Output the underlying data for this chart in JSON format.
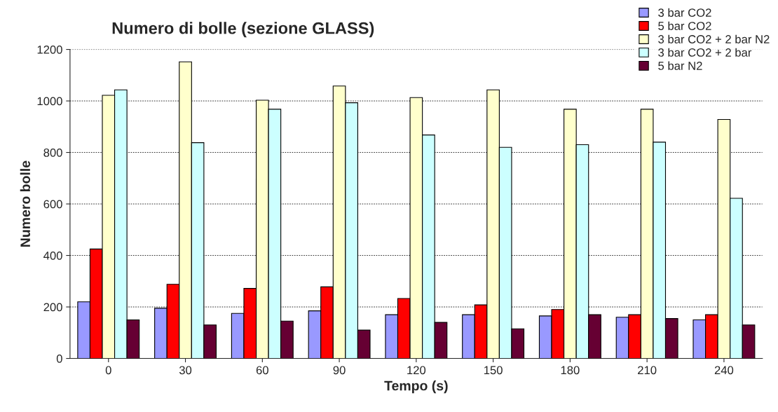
{
  "chart_data": {
    "type": "bar",
    "title": "Numero di bolle (sezione GLASS)",
    "xlabel": "Tempo (s)",
    "ylabel": "Numero bolle",
    "categories": [
      "0",
      "30",
      "60",
      "90",
      "120",
      "150",
      "180",
      "210",
      "240"
    ],
    "series": [
      {
        "name": "3 bar CO2",
        "color": "#9999ff",
        "values": [
          220,
          195,
          175,
          185,
          170,
          170,
          165,
          160,
          150
        ]
      },
      {
        "name": "5 bar CO2",
        "color": "#ff0000",
        "values": [
          425,
          288,
          272,
          278,
          233,
          208,
          190,
          170,
          170
        ]
      },
      {
        "name": "3 bar CO2 + 2 bar N2",
        "color": "#ffffcc",
        "values": [
          1022,
          1152,
          1003,
          1058,
          1013,
          1043,
          968,
          968,
          928
        ]
      },
      {
        "name": "3 bar CO2 + 2 bar",
        "color": "#ccffff",
        "values": [
          1043,
          838,
          968,
          993,
          868,
          820,
          830,
          840,
          622
        ]
      },
      {
        "name": "5 bar N2",
        "color": "#660033",
        "values": [
          150,
          130,
          145,
          110,
          140,
          115,
          170,
          155,
          130
        ]
      }
    ],
    "ylim": [
      0,
      1200
    ],
    "yticks": [
      0,
      200,
      400,
      600,
      800,
      1000,
      1200
    ],
    "grid": "y",
    "legend": "top right"
  }
}
